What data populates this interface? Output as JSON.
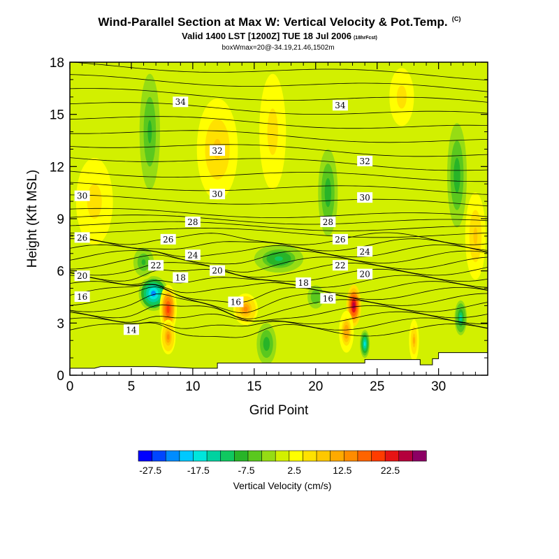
{
  "title": "Wind-Parallel Section at Max W: Vertical Velocity & Pot.Temp.",
  "title_mark": "(C)",
  "subtitle": "Valid 1400 LST [1200Z] TUE 18 Jul 2006",
  "subtitle_small": "(18hrFcst)",
  "subtitle2": "boxWmax=20@-34.19,21.46,1502m",
  "chart_data": {
    "type": "heatmap",
    "xlabel": "Grid Point",
    "ylabel": "Height (Kft MSL)",
    "xlim": [
      0,
      34
    ],
    "ylim": [
      0,
      18
    ],
    "xticks": [
      0,
      5,
      10,
      15,
      20,
      25,
      30
    ],
    "yticks": [
      0,
      3,
      6,
      9,
      12,
      15,
      18
    ],
    "colorbar": {
      "label": "Vertical Velocity (cm/s)",
      "tick_labels": [
        "-27.5",
        "-17.5",
        "-7.5",
        "2.5",
        "12.5",
        "22.5"
      ],
      "tick_values": [
        -27.5,
        -17.5,
        -7.5,
        2.5,
        12.5,
        22.5
      ],
      "min": -30,
      "max": 30,
      "colors": [
        "#0000ff",
        "#0046ff",
        "#008cff",
        "#00c8ff",
        "#00e6dc",
        "#00d2a0",
        "#10c860",
        "#28b428",
        "#5ac81e",
        "#96dc14",
        "#d2f000",
        "#ffff00",
        "#ffe100",
        "#ffc800",
        "#ffaa00",
        "#ff8c00",
        "#ff6400",
        "#ff3c00",
        "#e61414",
        "#b4003c",
        "#8c0064"
      ]
    },
    "theta_contours": [
      {
        "label": "14",
        "x": 5,
        "y": 2.6
      },
      {
        "label": "16",
        "x": 1,
        "y": 4.5
      },
      {
        "label": "16",
        "x": 13.5,
        "y": 4.2
      },
      {
        "label": "16",
        "x": 21,
        "y": 4.4
      },
      {
        "label": "18",
        "x": 9,
        "y": 5.6
      },
      {
        "label": "18",
        "x": 19,
        "y": 5.3
      },
      {
        "label": "20",
        "x": 1,
        "y": 5.7
      },
      {
        "label": "20",
        "x": 12,
        "y": 6.0
      },
      {
        "label": "20",
        "x": 24,
        "y": 5.8
      },
      {
        "label": "22",
        "x": 7,
        "y": 6.3
      },
      {
        "label": "22",
        "x": 22,
        "y": 6.3
      },
      {
        "label": "24",
        "x": 10,
        "y": 6.9
      },
      {
        "label": "24",
        "x": 24,
        "y": 7.1
      },
      {
        "label": "26",
        "x": 1,
        "y": 7.9
      },
      {
        "label": "26",
        "x": 8,
        "y": 7.8
      },
      {
        "label": "26",
        "x": 22,
        "y": 7.8
      },
      {
        "label": "28",
        "x": 10,
        "y": 8.8
      },
      {
        "label": "28",
        "x": 21,
        "y": 8.8
      },
      {
        "label": "30",
        "x": 1,
        "y": 10.3
      },
      {
        "label": "30",
        "x": 12,
        "y": 10.4
      },
      {
        "label": "30",
        "x": 24,
        "y": 10.2
      },
      {
        "label": "32",
        "x": 12,
        "y": 12.9
      },
      {
        "label": "32",
        "x": 24,
        "y": 12.3
      },
      {
        "label": "34",
        "x": 9,
        "y": 15.7
      },
      {
        "label": "34",
        "x": 22,
        "y": 15.5
      }
    ],
    "vertical_velocity_cells": [
      {
        "x": 6.8,
        "y": 4.7,
        "w": -22,
        "rx": 1.2,
        "ry": 1.0
      },
      {
        "x": 8.0,
        "y": 3.8,
        "w": 20,
        "rx": 0.7,
        "ry": 1.4
      },
      {
        "x": 8.0,
        "y": 2.2,
        "w": 14,
        "rx": 0.6,
        "ry": 1.0
      },
      {
        "x": 14.3,
        "y": 3.8,
        "w": 14,
        "rx": 1.0,
        "ry": 0.9
      },
      {
        "x": 23.1,
        "y": 4.0,
        "w": 26,
        "rx": 0.6,
        "ry": 1.2
      },
      {
        "x": 22.5,
        "y": 2.5,
        "w": 12,
        "rx": 0.6,
        "ry": 1.2
      },
      {
        "x": 24.0,
        "y": 1.8,
        "w": -17,
        "rx": 0.4,
        "ry": 0.8
      },
      {
        "x": 28.0,
        "y": 2.0,
        "w": 10,
        "rx": 0.4,
        "ry": 1.2
      },
      {
        "x": 31.8,
        "y": 3.3,
        "w": -14,
        "rx": 0.5,
        "ry": 1.0
      },
      {
        "x": 16.0,
        "y": 1.8,
        "w": -10,
        "rx": 0.8,
        "ry": 1.2
      },
      {
        "x": 12.0,
        "y": 13.0,
        "w": 8,
        "rx": 2.0,
        "ry": 3.5
      },
      {
        "x": 16.5,
        "y": 14.0,
        "w": 6,
        "rx": 1.3,
        "ry": 4.0
      },
      {
        "x": 6.5,
        "y": 14.0,
        "w": -8,
        "rx": 1.0,
        "ry": 4.0
      },
      {
        "x": 31.5,
        "y": 11.5,
        "w": -10,
        "rx": 0.8,
        "ry": 3.0
      },
      {
        "x": 2.0,
        "y": 10.0,
        "w": 6,
        "rx": 1.8,
        "ry": 3.0
      },
      {
        "x": 33.0,
        "y": 8.0,
        "w": 8,
        "rx": 1.0,
        "ry": 3.0
      },
      {
        "x": 27.0,
        "y": 16.0,
        "w": 6,
        "rx": 1.2,
        "ry": 2.0
      },
      {
        "x": 21.0,
        "y": 10.5,
        "w": -9,
        "rx": 0.8,
        "ry": 2.5
      },
      {
        "x": 17.0,
        "y": 6.7,
        "w": -12,
        "rx": 2.0,
        "ry": 0.8
      },
      {
        "x": 6.0,
        "y": 6.5,
        "w": -8,
        "rx": 1.0,
        "ry": 1.0
      },
      {
        "x": 20.0,
        "y": 4.5,
        "w": -7,
        "rx": 0.8,
        "ry": 0.8
      }
    ],
    "terrain": [
      [
        0,
        0.4
      ],
      [
        2,
        0.4
      ],
      [
        2.5,
        0.5
      ],
      [
        7,
        0.5
      ],
      [
        10,
        0.4
      ],
      [
        12,
        0.4
      ],
      [
        12,
        0.7
      ],
      [
        17,
        0.7
      ],
      [
        23,
        0.7
      ],
      [
        24,
        0.7
      ],
      [
        24,
        0.9
      ],
      [
        28.5,
        0.9
      ],
      [
        28.5,
        0.6
      ],
      [
        29.5,
        0.6
      ],
      [
        29.5,
        0.95
      ],
      [
        30,
        0.95
      ],
      [
        30,
        1.3
      ],
      [
        34,
        1.3
      ]
    ]
  }
}
